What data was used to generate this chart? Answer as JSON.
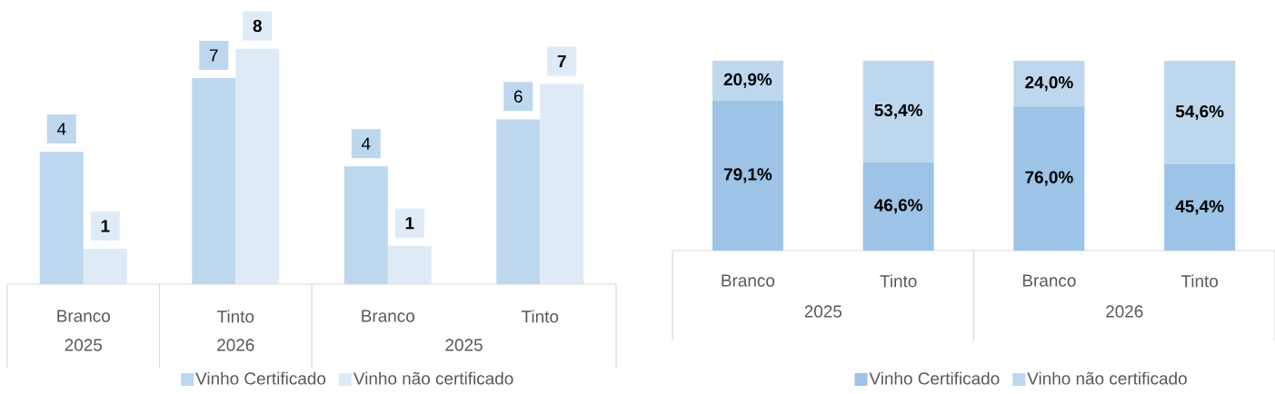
{
  "chart_data": [
    {
      "type": "bar",
      "categories": [
        "Branco",
        "Tinto",
        "Branco",
        "Tinto"
      ],
      "annotations": [
        "2025",
        "2026",
        "2025"
      ],
      "legend": "bottom",
      "series": [
        {
          "name": "Vinho Certificado",
          "color": "#bdd7ee",
          "values": [
            4.5,
            7.0,
            4.0,
            5.6
          ],
          "value_labels": [
            "4",
            "7",
            "4",
            "6"
          ]
        },
        {
          "name": "Vinho não certificado",
          "color": "#deebf7",
          "values": [
            1.2,
            8.0,
            1.3,
            6.8
          ],
          "value_labels": [
            "1",
            "8",
            "1",
            "7"
          ]
        }
      ]
    },
    {
      "type": "bar",
      "stacked": true,
      "categories": [
        "Branco",
        "Tinto",
        "Branco",
        "Tinto"
      ],
      "annotations": [
        "2025",
        "2026"
      ],
      "legend": "bottom",
      "series": [
        {
          "name": "Vinho Certificado",
          "color": "#9dc3e6",
          "values": [
            79.1,
            46.6,
            76.0,
            45.4
          ],
          "value_labels": [
            "79,1%",
            "46,6%",
            "76,0%",
            "45,4%"
          ]
        },
        {
          "name": "Vinho não certificado",
          "color": "#bdd7ee",
          "values": [
            20.9,
            53.4,
            24.0,
            54.6
          ],
          "value_labels": [
            "20,9%",
            "53,4%",
            "24,0%",
            "54,6%"
          ]
        }
      ]
    }
  ]
}
